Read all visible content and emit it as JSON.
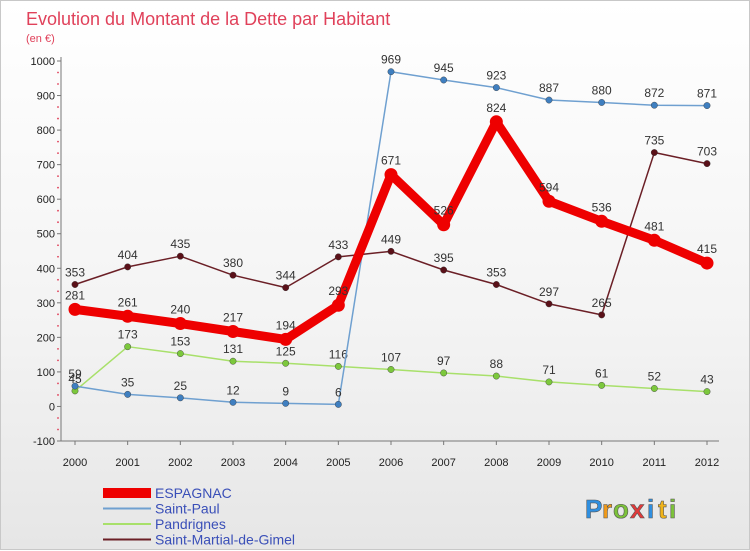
{
  "chart_data": {
    "type": "line",
    "title": "Evolution du Montant de la Dette par Habitant",
    "subtitle": "(en €)",
    "x": [
      "2000",
      "2001",
      "2002",
      "2003",
      "2004",
      "2005",
      "2006",
      "2007",
      "2008",
      "2009",
      "2010",
      "2011",
      "2012"
    ],
    "ylim": [
      -100,
      1000
    ],
    "yticks": [
      "-100",
      "0",
      "100",
      "200",
      "300",
      "400",
      "500",
      "600",
      "700",
      "800",
      "900",
      "1000"
    ],
    "grid": false,
    "legend_position": "bottom-left",
    "series": [
      {
        "name": "Saint-Martial-de-Gimel",
        "color": "#6b1f26",
        "dot": "#5a1018",
        "values": [
          353,
          404,
          435,
          380,
          344,
          433,
          449,
          395,
          353,
          297,
          265,
          735,
          703
        ],
        "labels": [
          "353",
          "404",
          "435",
          "380",
          "344",
          "433",
          "449",
          "395",
          "353",
          "297",
          "265",
          "735",
          "703"
        ]
      },
      {
        "name": "Pandrignes",
        "color": "#a8e06a",
        "dot": "#7cc83c",
        "values": [
          45,
          173,
          153,
          131,
          125,
          116,
          107,
          97,
          88,
          71,
          61,
          52,
          43
        ],
        "labels": [
          "45",
          "173",
          "153",
          "131",
          "125",
          "116",
          "107",
          "97",
          "88",
          "71",
          "61",
          "52",
          "43"
        ]
      },
      {
        "name": "Saint-Paul",
        "color": "#6fa0d0",
        "dot": "#3f7fc0",
        "values": [
          59,
          35,
          25,
          12,
          9,
          6,
          969,
          945,
          923,
          887,
          880,
          872,
          871
        ],
        "labels": [
          "59",
          "35",
          "25",
          "12",
          "9",
          "6",
          "969",
          "945",
          "923",
          "887",
          "880",
          "872",
          "871"
        ]
      },
      {
        "name": "ESPAGNAC",
        "color": "#ee0000",
        "dot": "#ee0000",
        "thick": true,
        "values": [
          281,
          261,
          240,
          217,
          194,
          293,
          671,
          526,
          824,
          594,
          536,
          481,
          415
        ],
        "labels": [
          "281",
          "261",
          "240",
          "217",
          "194",
          "293",
          "671",
          "526",
          "824",
          "594",
          "536",
          "481",
          "415"
        ]
      }
    ]
  },
  "legend": [
    {
      "name": "ESPAGNAC",
      "color": "#ee0000",
      "thick": true
    },
    {
      "name": "Saint-Paul",
      "color": "#6fa0d0"
    },
    {
      "name": "Pandrignes",
      "color": "#a8e06a"
    },
    {
      "name": "Saint-Martial-de-Gimel",
      "color": "#6b1f26"
    }
  ],
  "logo": {
    "letters": [
      {
        "ch": "P",
        "color": "#2f8fe0"
      },
      {
        "ch": "r",
        "color": "#f09a1a"
      },
      {
        "ch": "o",
        "color": "#7cc23a"
      },
      {
        "ch": "x",
        "color": "#e03a3a"
      },
      {
        "ch": "i",
        "color": "#2f8fe0"
      },
      {
        "ch": "t",
        "color": "#f0b41a"
      },
      {
        "ch": "i",
        "color": "#7cc23a"
      }
    ]
  }
}
